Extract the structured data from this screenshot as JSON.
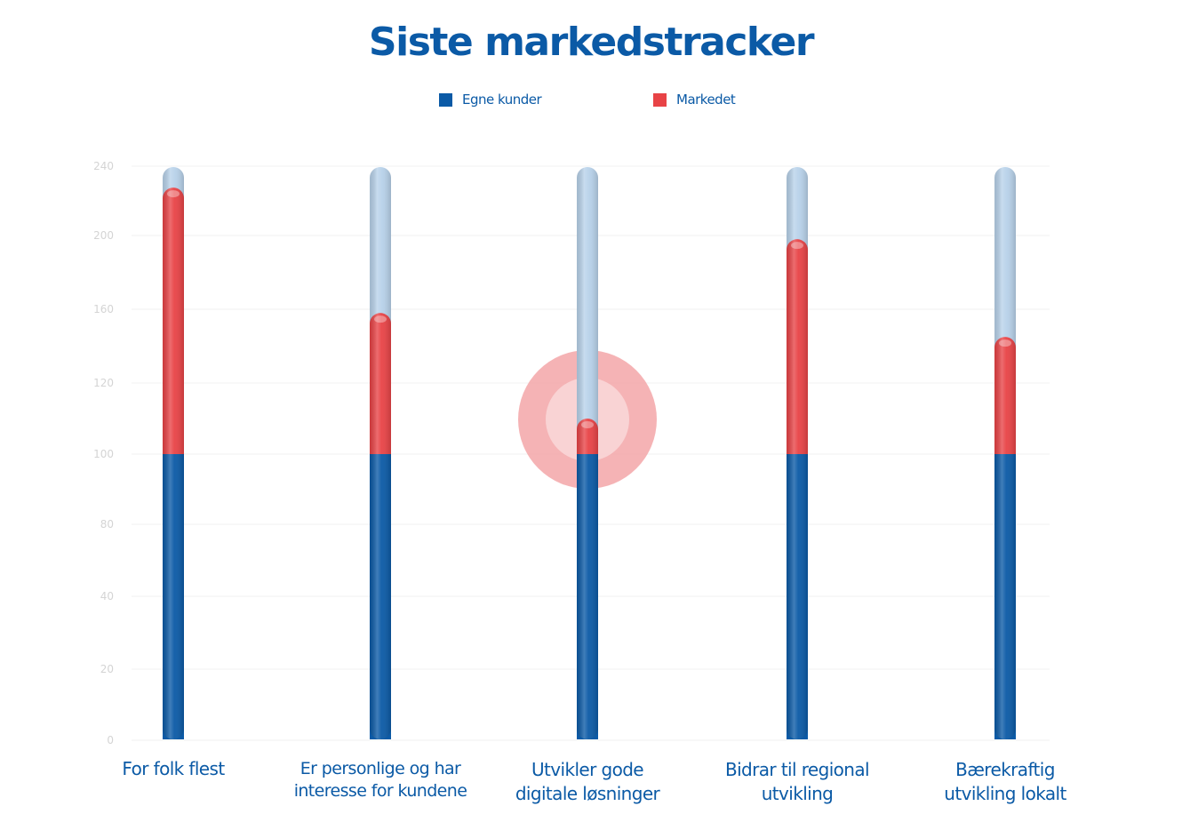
{
  "title": "Siste markedstracker",
  "legend": {
    "items": [
      {
        "label": "Egne kunder",
        "color": "#0b5aa6"
      },
      {
        "label": "Markedet",
        "color": "#e84346"
      }
    ]
  },
  "colors": {
    "own": "#0b5aa6",
    "market": "#e84346",
    "track": "#b8d2ea",
    "highlight": "#f3a6a8",
    "grid": "#f0f0f0",
    "tick": "#d4d4d4"
  },
  "chart_data": {
    "type": "bar",
    "title": "Siste markedstracker",
    "categories": [
      "For folk flest",
      "Er personlige og har interesse for kundene",
      "Utvikler gode digitale løsninger",
      "Bidrar til regional utvikling",
      "Bærekraftig utvikling lokalt"
    ],
    "category_lines": [
      [
        "For folk flest"
      ],
      [
        "Er personlige og har",
        "interesse for kundene"
      ],
      [
        "Utvikler gode",
        "digitale løsninger"
      ],
      [
        "Bidrar til regional",
        "utvikling"
      ],
      [
        "Bærekraftig",
        "utvikling lokalt"
      ]
    ],
    "series": [
      {
        "name": "Egne kunder",
        "values": [
          100,
          100,
          100,
          100,
          100
        ]
      },
      {
        "name": "Markedet",
        "values": [
          228,
          158,
          110,
          198,
          145
        ]
      }
    ],
    "track_max": 240,
    "highlight_index": 2,
    "yticks": [
      0,
      20,
      40,
      80,
      100,
      120,
      160,
      200,
      240
    ],
    "ylim": [
      0,
      240
    ],
    "grid": true,
    "legend_position": "top-center"
  }
}
